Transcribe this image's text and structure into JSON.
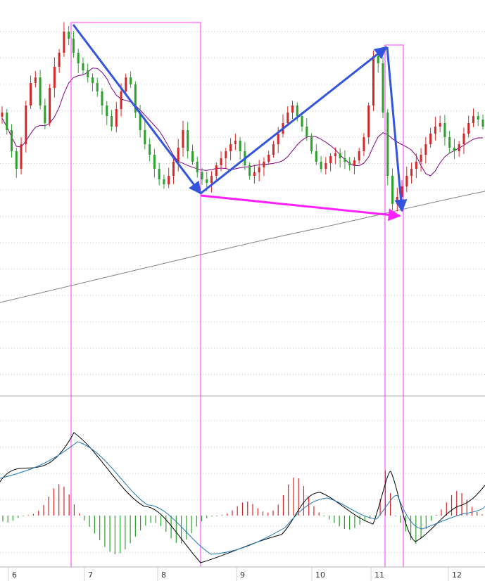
{
  "chart_data": [
    {
      "type": "candlestick",
      "panel": "price",
      "x_tick_labels": [
        "6",
        "7",
        "8",
        "9",
        "10",
        "11",
        "12"
      ],
      "grid": "dotted-horizontal",
      "colors": {
        "up": "#d62728",
        "down": "#2ca02c",
        "ma_short": "#800080",
        "ma_long": "#808080"
      },
      "candles_close_path": [
        160,
        185,
        215,
        240,
        205,
        150,
        118,
        110,
        150,
        175,
        125,
        95,
        75,
        45,
        55,
        75,
        90,
        100,
        110,
        118,
        130,
        150,
        165,
        180,
        155,
        130,
        110,
        120,
        160,
        185,
        205,
        220,
        240,
        255,
        262,
        250,
        230,
        210,
        185,
        215,
        230,
        245,
        255,
        260,
        250,
        235,
        225,
        215,
        205,
        200,
        215,
        235,
        250,
        245,
        238,
        230,
        220,
        205,
        190,
        175,
        160,
        150,
        165,
        180,
        195,
        215,
        230,
        240,
        232,
        222,
        218,
        225,
        230,
        235,
        228,
        215,
        195,
        150,
        80,
        90,
        160,
        250,
        290,
        280,
        265,
        250,
        240,
        230,
        220,
        205,
        190,
        180,
        175,
        195,
        210,
        215,
        205,
        190,
        175,
        165,
        170,
        180
      ],
      "annotations": [
        {
          "kind": "rectangle",
          "color": "#ff33ff",
          "from_label": "7",
          "to_label": "8"
        },
        {
          "kind": "rectangle",
          "color": "#ff33ff",
          "from_label": "11",
          "to_label": "11"
        },
        {
          "kind": "arrow",
          "color": "#3355dd"
        },
        {
          "kind": "arrow",
          "color": "#3355dd"
        },
        {
          "kind": "arrow",
          "color": "#3355dd"
        },
        {
          "kind": "arrow",
          "color": "#ff22ff"
        }
      ]
    },
    {
      "type": "macd",
      "panel": "indicator",
      "colors": {
        "macd": "#000000",
        "signal": "#1f77b4",
        "hist_pos": "#d62728",
        "hist_neg": "#2ca02c"
      }
    }
  ]
}
